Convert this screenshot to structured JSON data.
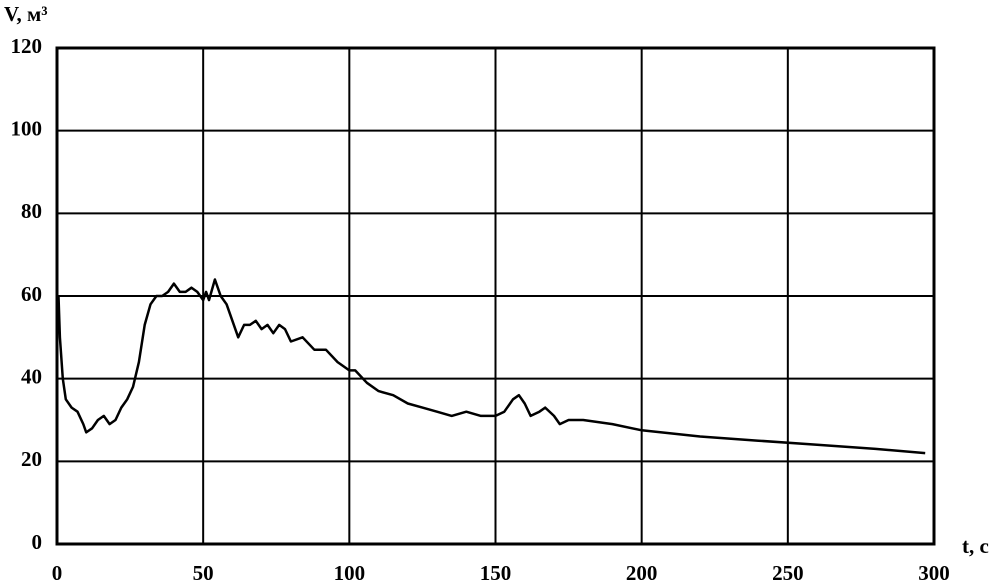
{
  "chart_data": {
    "type": "line",
    "y_label": "V, м³",
    "x_label": "t, с",
    "x": [
      0.5,
      1,
      2,
      3,
      5,
      7,
      9,
      10,
      12,
      14,
      16,
      18,
      20,
      22,
      24,
      26,
      28,
      30,
      32,
      34,
      36,
      38,
      40,
      42,
      44,
      46,
      48,
      50,
      51,
      52,
      54,
      56,
      58,
      60,
      62,
      64,
      66,
      68,
      70,
      72,
      74,
      76,
      78,
      80,
      84,
      88,
      92,
      96,
      100,
      102,
      106,
      110,
      115,
      120,
      125,
      130,
      135,
      140,
      145,
      150,
      153,
      156,
      158,
      160,
      162,
      165,
      167,
      170,
      172,
      175,
      180,
      190,
      200,
      220,
      240,
      260,
      280,
      297
    ],
    "values": [
      60,
      50,
      40,
      35,
      33,
      32,
      29,
      27,
      28,
      30,
      31,
      29,
      30,
      33,
      35,
      38,
      44,
      53,
      58,
      60,
      60,
      61,
      63,
      61,
      61,
      62,
      61,
      59,
      61,
      59,
      64,
      60,
      58,
      54,
      50,
      53,
      53,
      54,
      52,
      53,
      51,
      53,
      52,
      49,
      50,
      47,
      47,
      44,
      42,
      42,
      39,
      37,
      36,
      34,
      33,
      32,
      31,
      32,
      31,
      31,
      32,
      35,
      36,
      34,
      31,
      32,
      33,
      31,
      29,
      30,
      30,
      29,
      27.5,
      26,
      25,
      24,
      23,
      22
    ],
    "color": "#000000",
    "xlim": [
      0,
      300
    ],
    "xticks": [
      0,
      50,
      100,
      150,
      200,
      250,
      300
    ],
    "ylim": [
      0,
      120
    ],
    "yticks": [
      0,
      20,
      40,
      60,
      80,
      100,
      120
    ],
    "grid": true
  }
}
